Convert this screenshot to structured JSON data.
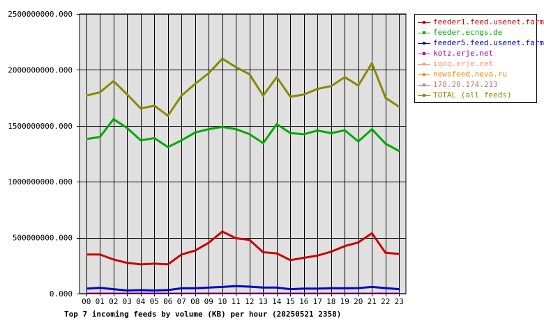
{
  "chart_data": {
    "type": "line",
    "title": "Top 7 incoming feeds by volume (KB) per hour (20250521 2358)",
    "xlabel": "",
    "ylabel": "",
    "ylim": [
      0,
      2500000000
    ],
    "y_ticks": [
      "0.000",
      "500000000.000",
      "1000000000.000",
      "1500000000.000",
      "2000000000.000",
      "2500000000.000"
    ],
    "y_tick_values": [
      0,
      500000000,
      1000000000,
      1500000000,
      2000000000,
      2500000000
    ],
    "categories": [
      "00",
      "01",
      "02",
      "03",
      "04",
      "05",
      "06",
      "07",
      "08",
      "09",
      "10",
      "11",
      "12",
      "13",
      "14",
      "15",
      "16",
      "17",
      "18",
      "19",
      "20",
      "21",
      "22",
      "23"
    ],
    "grid": true,
    "legend_position": "top-right",
    "series": [
      {
        "name": "feeder1.feed.usenet.farm",
        "color": "#cc0000",
        "values": [
          350000000,
          350000000,
          305000000,
          275000000,
          262000000,
          268000000,
          262000000,
          350000000,
          385000000,
          455000000,
          555000000,
          495000000,
          480000000,
          370000000,
          360000000,
          300000000,
          320000000,
          340000000,
          375000000,
          425000000,
          458000000,
          540000000,
          365000000,
          355000000
        ]
      },
      {
        "name": "feeder.ecngs.de",
        "color": "#00aa00",
        "values": [
          1382000000,
          1400000000,
          1560000000,
          1480000000,
          1370000000,
          1390000000,
          1310000000,
          1370000000,
          1440000000,
          1470000000,
          1490000000,
          1470000000,
          1425000000,
          1345000000,
          1515000000,
          1435000000,
          1425000000,
          1458000000,
          1435000000,
          1460000000,
          1360000000,
          1470000000,
          1340000000,
          1275000000
        ]
      },
      {
        "name": "feeder5.feed.usenet.farm",
        "color": "#0000cc",
        "values": [
          45000000,
          52000000,
          40000000,
          28000000,
          32000000,
          28000000,
          32000000,
          48000000,
          48000000,
          55000000,
          60000000,
          68000000,
          62000000,
          55000000,
          55000000,
          40000000,
          45000000,
          45000000,
          48000000,
          48000000,
          50000000,
          60000000,
          50000000,
          40000000
        ]
      },
      {
        "name": "kotz.erje.net",
        "color": "#aa00aa",
        "values": [
          3000000,
          3000000,
          3000000,
          3000000,
          3000000,
          3000000,
          3000000,
          3000000,
          3000000,
          3000000,
          3000000,
          3000000,
          3000000,
          3000000,
          3000000,
          3000000,
          3000000,
          3000000,
          3000000,
          3000000,
          3000000,
          3000000,
          3000000,
          3000000
        ]
      },
      {
        "name": "iqoq.erje.net",
        "color": "#ff9977",
        "values": [
          2000000,
          2000000,
          2000000,
          2000000,
          2000000,
          2000000,
          2000000,
          2000000,
          2000000,
          2000000,
          2000000,
          2000000,
          2000000,
          2000000,
          2000000,
          2000000,
          2000000,
          2000000,
          2000000,
          2000000,
          2000000,
          2000000,
          2000000,
          2000000
        ]
      },
      {
        "name": "newsfeed.neva.ru",
        "color": "#ff8800",
        "values": [
          1500000,
          1500000,
          1500000,
          1500000,
          1500000,
          1500000,
          1500000,
          1500000,
          1500000,
          1500000,
          1500000,
          1500000,
          1500000,
          1500000,
          1500000,
          1500000,
          1500000,
          1500000,
          1500000,
          1500000,
          1500000,
          1500000,
          1500000,
          1500000
        ]
      },
      {
        "name": "178.20.174.213",
        "color": "#cc7777",
        "values": [
          1000000,
          1000000,
          1000000,
          1000000,
          1000000,
          1000000,
          1000000,
          1000000,
          1000000,
          1000000,
          1000000,
          1000000,
          1000000,
          1000000,
          1000000,
          1000000,
          1000000,
          1000000,
          1000000,
          1000000,
          1000000,
          1000000,
          1000000,
          1000000
        ]
      },
      {
        "name": "TOTAL (all feeds)",
        "color": "#888800",
        "values": [
          1770000000,
          1800000000,
          1900000000,
          1780000000,
          1655000000,
          1680000000,
          1590000000,
          1770000000,
          1875000000,
          1970000000,
          2100000000,
          2025000000,
          1960000000,
          1770000000,
          1935000000,
          1760000000,
          1780000000,
          1830000000,
          1855000000,
          1935000000,
          1860000000,
          2060000000,
          1750000000,
          1670000000
        ]
      }
    ]
  }
}
